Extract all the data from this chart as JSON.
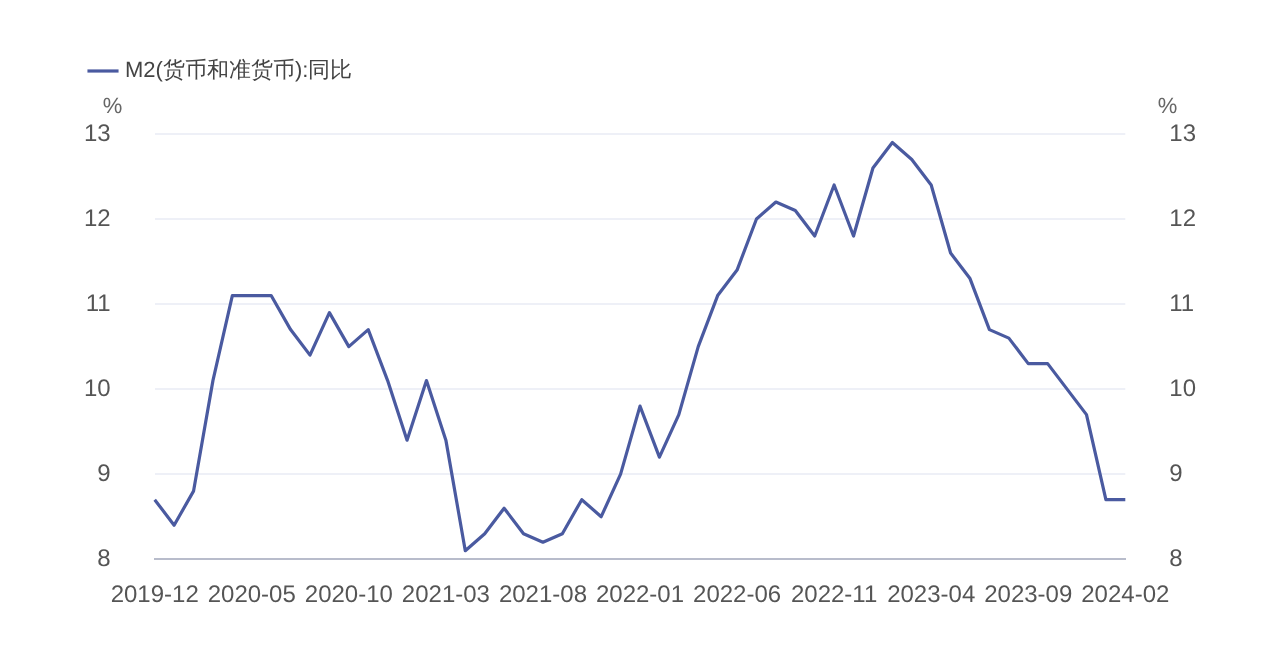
{
  "chart_data": {
    "type": "line",
    "ylabel": "%",
    "y2label": "%",
    "categories": [
      "2019-12",
      null,
      null,
      null,
      null,
      "2020-05",
      null,
      null,
      null,
      null,
      "2020-10",
      null,
      null,
      null,
      null,
      "2021-03",
      null,
      null,
      null,
      null,
      "2021-08",
      null,
      null,
      null,
      null,
      "2022-01",
      null,
      null,
      null,
      null,
      "2022-06",
      null,
      null,
      null,
      null,
      "2022-11",
      null,
      null,
      null,
      null,
      "2023-04",
      null,
      null,
      null,
      null,
      "2023-09",
      null,
      null,
      null,
      null,
      "2024-02"
    ],
    "series": [
      {
        "name": "M2(货币和准货币):同比",
        "color": "#4a5aa0",
        "values": [
          8.7,
          8.4,
          8.8,
          10.1,
          11.1,
          11.1,
          11.1,
          10.7,
          10.4,
          10.9,
          10.5,
          10.7,
          10.1,
          9.4,
          10.1,
          9.4,
          8.1,
          8.3,
          8.6,
          8.3,
          8.2,
          8.3,
          8.7,
          8.5,
          9.0,
          9.8,
          9.2,
          9.7,
          10.5,
          11.1,
          11.4,
          12.0,
          12.2,
          12.1,
          11.8,
          12.4,
          11.8,
          12.6,
          12.9,
          12.7,
          12.4,
          11.6,
          11.3,
          10.7,
          10.6,
          10.3,
          10.3,
          10.0,
          9.7,
          8.7,
          8.7
        ]
      }
    ],
    "ylim": [
      8,
      13
    ],
    "yticks": [
      8,
      9,
      10,
      11,
      12,
      13
    ],
    "y2lim": [
      8,
      13
    ],
    "y2ticks": [
      8,
      9,
      10,
      11,
      12,
      13
    ],
    "grid": "y",
    "legend": "top left",
    "marker": "none",
    "line_style": "solid"
  }
}
